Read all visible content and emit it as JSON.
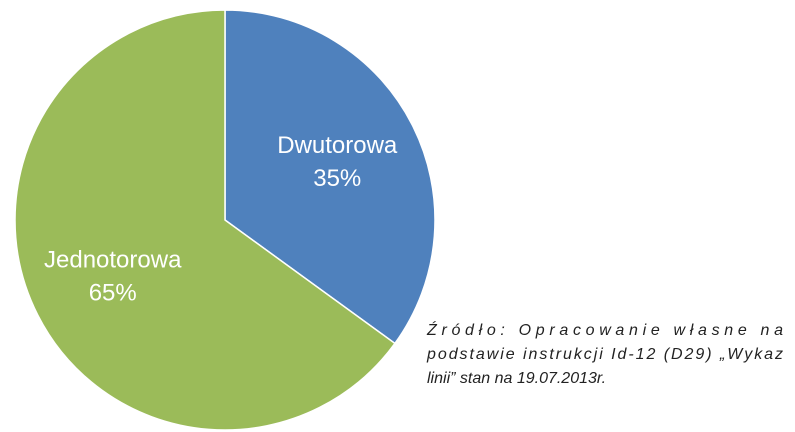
{
  "chart_data": {
    "type": "pie",
    "categories": [
      "Dwutorowa",
      "Jednotorowa"
    ],
    "values": [
      35,
      65
    ],
    "value_labels": [
      "35%",
      "65%"
    ],
    "colors": [
      "#4f81bd",
      "#9bbb59"
    ],
    "note": [
      "Źródło: Opracowanie własne na",
      "podstawie instrukcji Id-12 (D29) „Wykaz",
      "linii” stan na 19.07.2013r."
    ]
  }
}
